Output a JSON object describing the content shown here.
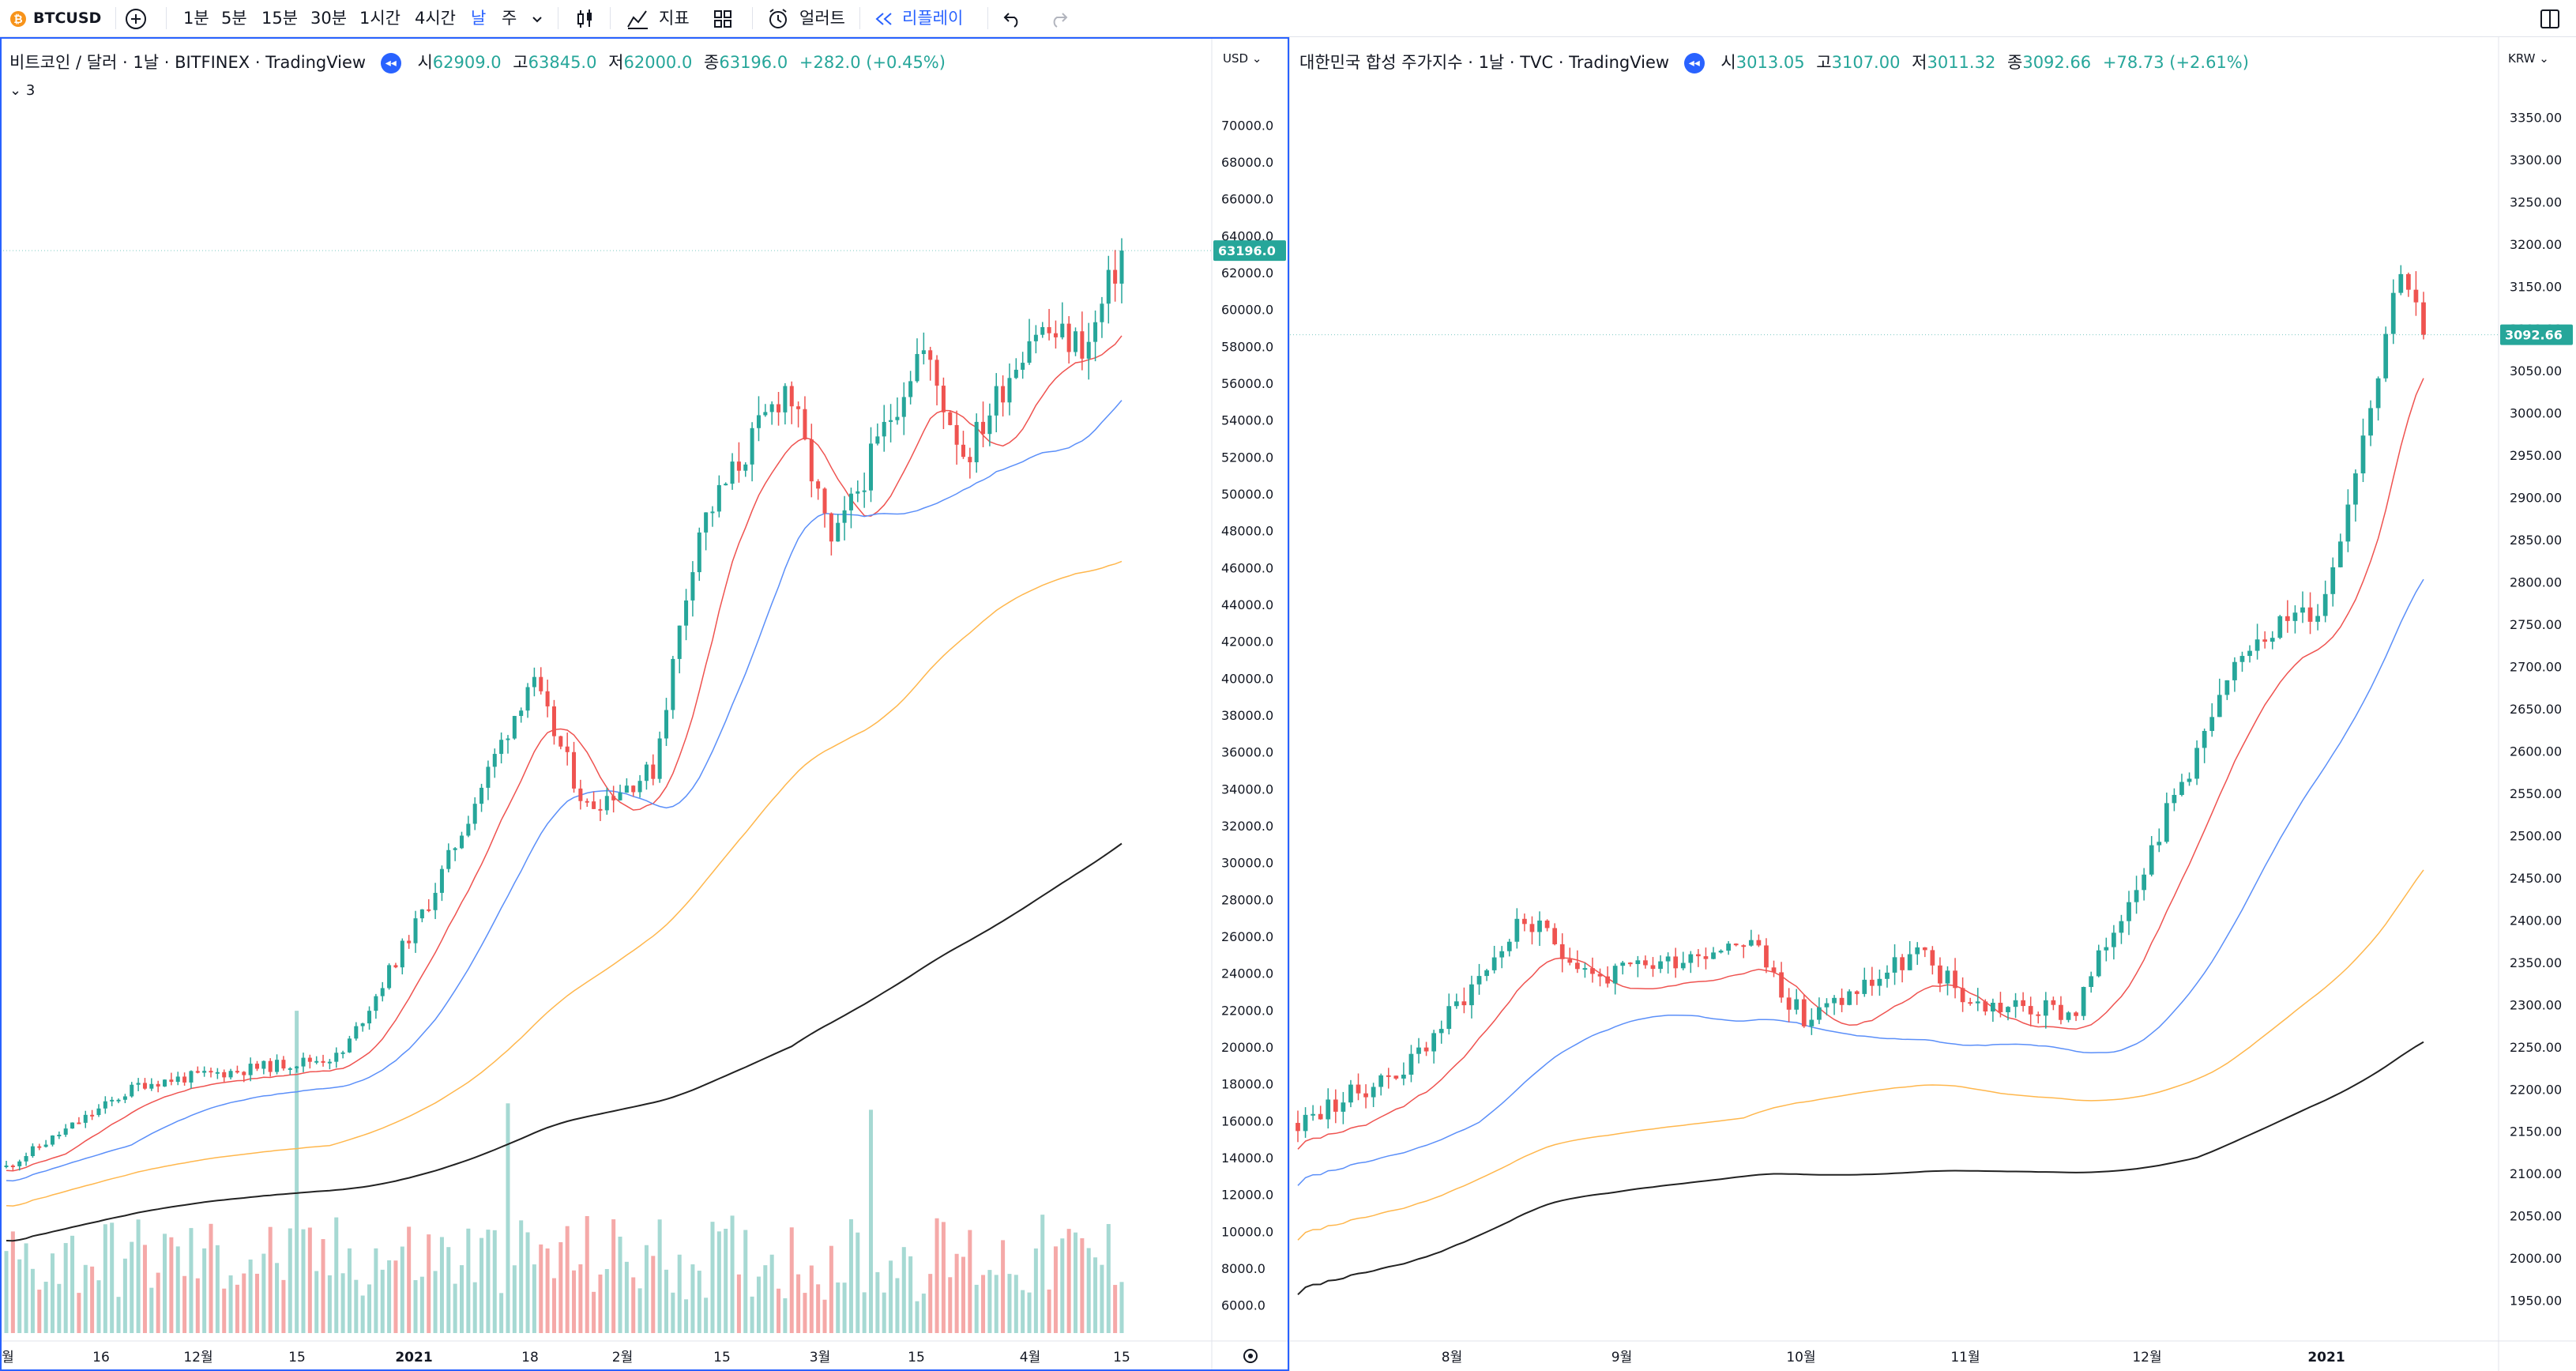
{
  "toolbar": {
    "symbol": "BTCUSD",
    "symbol_icon": "bitcoin-icon",
    "add_symbol_icon": "plus-circle-icon",
    "intervals": [
      "1분",
      "5분",
      "15분",
      "30분",
      "1시간",
      "4시간",
      "날",
      "주"
    ],
    "active_interval": "날",
    "chart_type_icon": "candles-icon",
    "indicators_label": "지표",
    "templates_icon": "grid-icon",
    "alert_label": "얼러트",
    "replay_label": "리플레이",
    "undo_icon": "undo-icon",
    "redo_icon": "redo-icon",
    "layout_icon": "layout-icon"
  },
  "left_chart": {
    "title": "비트코인 / 달러 · 1날 · BITFINEX · TradingView",
    "open_label": "시",
    "open": "62909.0",
    "high_label": "고",
    "high": "63845.0",
    "low_label": "저",
    "low": "62000.0",
    "close_label": "종",
    "close": "63196.0",
    "change": "+282.0 (+0.45%)",
    "indicator_toggle": "3",
    "currency": "USD",
    "last_price": "63196.0",
    "price_ticks": [
      "70000.0",
      "68000.0",
      "66000.0",
      "64000.0",
      "62000.0",
      "60000.0",
      "58000.0",
      "56000.0",
      "54000.0",
      "52000.0",
      "50000.0",
      "48000.0",
      "46000.0",
      "44000.0",
      "42000.0",
      "40000.0",
      "38000.0",
      "36000.0",
      "34000.0",
      "32000.0",
      "30000.0",
      "28000.0",
      "26000.0",
      "24000.0",
      "22000.0",
      "20000.0",
      "18000.0",
      "16000.0",
      "14000.0",
      "12000.0",
      "10000.0",
      "8000.0",
      "6000.0"
    ],
    "time_ticks": [
      "월",
      "16",
      "12월",
      "15",
      "2021",
      "18",
      "2월",
      "15",
      "3월",
      "15",
      "4월",
      "15"
    ],
    "settings_icon": "gear-icon"
  },
  "right_chart": {
    "title": "대한민국 합성 주가지수 · 1날 · TVC · TradingView",
    "open_label": "시",
    "open": "3013.05",
    "high_label": "고",
    "high": "3107.00",
    "low_label": "저",
    "low": "3011.32",
    "close_label": "종",
    "close": "3092.66",
    "change": "+78.73 (+2.61%)",
    "currency": "KRW",
    "last_price": "3092.66",
    "price_ticks": [
      "3350.00",
      "3300.00",
      "3250.00",
      "3200.00",
      "3150.00",
      "3100.00",
      "3050.00",
      "3000.00",
      "2950.00",
      "2900.00",
      "2850.00",
      "2800.00",
      "2750.00",
      "2700.00",
      "2650.00",
      "2600.00",
      "2550.00",
      "2500.00",
      "2450.00",
      "2400.00",
      "2350.00",
      "2300.00",
      "2250.00",
      "2200.00",
      "2150.00",
      "2100.00",
      "2050.00",
      "2000.00",
      "1950.00"
    ],
    "time_ticks": [
      "8월",
      "9월",
      "10월",
      "11월",
      "12월",
      "2021"
    ]
  },
  "colors": {
    "up": "#26a69a",
    "down": "#ef5350",
    "vol_up": "#a6d9d3",
    "vol_down": "#f5a9a8",
    "ma_red": "#ef5350",
    "ma_blue": "#5b8ff9",
    "ma_orange": "#ffb74d",
    "ma_black": "#222222",
    "accent": "#2962ff",
    "price_label_bg": "#26a69a"
  }
}
